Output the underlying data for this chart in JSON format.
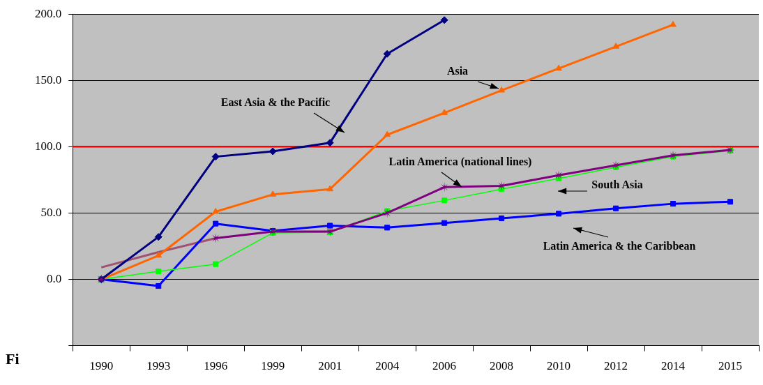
{
  "chart_data": {
    "type": "line",
    "categories": [
      "1990",
      "1993",
      "1996",
      "1999",
      "2001",
      "2004",
      "2006",
      "2008",
      "2010",
      "2012",
      "2014",
      "2015"
    ],
    "series": [
      {
        "name": "East Asia & the Pacific",
        "color": "#000080",
        "marker": "diamond",
        "values": [
          0,
          32,
          92.5,
          96.5,
          103,
          170,
          195.5,
          null,
          null,
          null,
          null,
          null
        ]
      },
      {
        "name": "Asia",
        "color": "#ff6600",
        "marker": "triangle",
        "values": [
          0,
          18,
          51,
          64,
          68,
          109,
          125.5,
          142.5,
          159,
          175.5,
          192,
          null
        ]
      },
      {
        "name": "Latin America (national lines)",
        "color": "#800080",
        "marker": "star",
        "values": [
          0,
          null,
          31,
          36,
          36,
          50,
          69.5,
          70.5,
          78.5,
          86,
          93.5,
          97.5
        ]
      },
      {
        "name": "South Asia",
        "color": "#00ff00",
        "marker": "square",
        "values": [
          0,
          6,
          11.5,
          35,
          35.5,
          51.5,
          59.5,
          68,
          76,
          84.5,
          92.5,
          97
        ]
      },
      {
        "name": "Latin America & the Caribbean",
        "color": "#0000ff",
        "marker": "square",
        "values": [
          0,
          -5,
          42,
          36.5,
          40.5,
          39,
          42.5,
          46,
          49.5,
          53.5,
          57,
          58.5
        ]
      },
      {
        "color": "#a05070",
        "marker": "none",
        "values": [
          9,
          20.5,
          31,
          null,
          null,
          null,
          null,
          null,
          null,
          null,
          null,
          null
        ]
      }
    ],
    "ylim": [
      -50,
      200
    ],
    "yticks": [
      {
        "value": -50,
        "label": null
      },
      {
        "value": 0,
        "label": "0.0"
      },
      {
        "value": 50,
        "label": "50.0"
      },
      {
        "value": 100,
        "label": "100.0"
      },
      {
        "value": 150,
        "label": "150.0"
      },
      {
        "value": 200,
        "label": "200.0"
      }
    ],
    "grid": "y",
    "legend": false,
    "ref_lines": [
      {
        "axis": "y",
        "value": 100,
        "color": "#ff0000"
      }
    ],
    "annotations": [
      "Fi"
    ]
  }
}
